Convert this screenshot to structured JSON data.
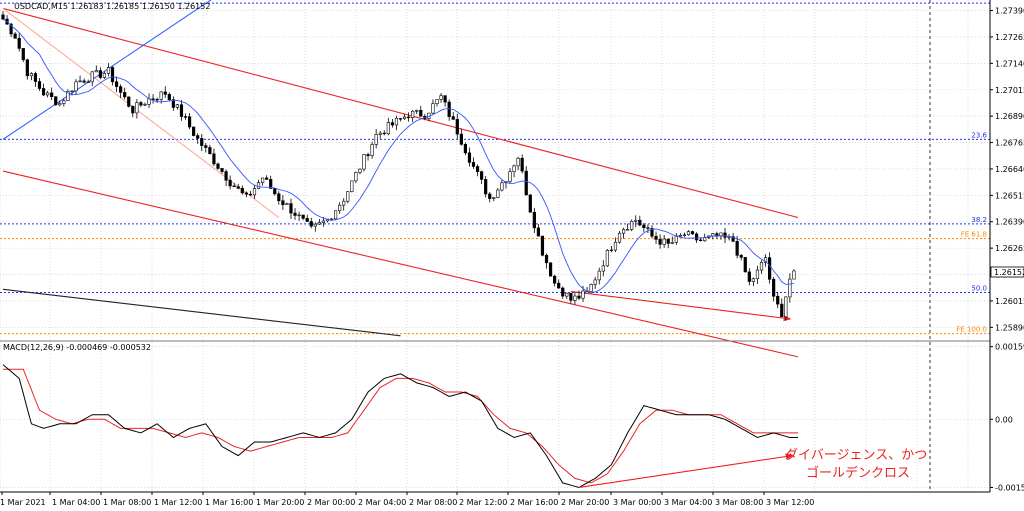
{
  "chart_data": {
    "type": "candlestick",
    "symbol_line": "USDCAD,M15  1.26183 1.26185 1.26150 1.26152",
    "last_price_tag": "1.26152",
    "price_axis": {
      "ylim": [
        1.2583,
        1.2744
      ],
      "ticks": [
        1.2739,
        1.27265,
        1.2714,
        1.27015,
        1.2689,
        1.26765,
        1.2664,
        1.26515,
        1.2639,
        1.26265,
        1.2614,
        1.26015,
        1.2589
      ],
      "tick_labels": [
        "1.27390",
        "1.27265",
        "1.27140",
        "1.27015",
        "1.26890",
        "1.26765",
        "1.26640",
        "1.26515",
        "1.26390",
        "1.26265",
        "1.26140",
        "1.26015",
        "1.25890"
      ]
    },
    "time_axis": {
      "labels": [
        "1 Mar 2021",
        "1 Mar 04:00",
        "1 Mar 08:00",
        "1 Mar 12:00",
        "1 Mar 16:00",
        "1 Mar 20:00",
        "2 Mar 00:00",
        "2 Mar 04:00",
        "2 Mar 08:00",
        "2 Mar 12:00",
        "2 Mar 16:00",
        "2 Mar 20:00",
        "3 Mar 00:00",
        "3 Mar 04:00",
        "3 Mar 08:00",
        "3 Mar 12:00"
      ],
      "bars": 196
    },
    "levels": [
      {
        "label": "23.6",
        "price": 1.2678,
        "color": "#2233ee",
        "style": "dotted"
      },
      {
        "label": "38.2",
        "price": 1.2638,
        "color": "#2233ee",
        "style": "dotted"
      },
      {
        "label": "FE 61.8",
        "price": 1.2631,
        "color": "#ff8800",
        "style": "dotted"
      },
      {
        "label": "50.0",
        "price": 1.26055,
        "color": "#2233ee",
        "style": "dotted"
      },
      {
        "label": "FE 100.0",
        "price": 1.2586,
        "color": "#ff8800",
        "style": "dotted"
      }
    ],
    "top_dotted_level": 1.27425,
    "price_anchors": [
      [
        0,
        1.2735
      ],
      [
        3,
        1.2727
      ],
      [
        6,
        1.271
      ],
      [
        10,
        1.27
      ],
      [
        14,
        1.2695
      ],
      [
        18,
        1.2705
      ],
      [
        22,
        1.2708
      ],
      [
        26,
        1.271
      ],
      [
        29,
        1.27
      ],
      [
        32,
        1.2692
      ],
      [
        36,
        1.2697
      ],
      [
        40,
        1.27
      ],
      [
        44,
        1.269
      ],
      [
        48,
        1.2678
      ],
      [
        52,
        1.2668
      ],
      [
        56,
        1.2658
      ],
      [
        60,
        1.265
      ],
      [
        64,
        1.266
      ],
      [
        68,
        1.265
      ],
      [
        72,
        1.2643
      ],
      [
        76,
        1.2635
      ],
      [
        80,
        1.264
      ],
      [
        84,
        1.265
      ],
      [
        88,
        1.2665
      ],
      [
        92,
        1.268
      ],
      [
        96,
        1.2685
      ],
      [
        100,
        1.269
      ],
      [
        104,
        1.269
      ],
      [
        108,
        1.2698
      ],
      [
        112,
        1.2682
      ],
      [
        116,
        1.2665
      ],
      [
        120,
        1.265
      ],
      [
        124,
        1.266
      ],
      [
        127,
        1.267
      ],
      [
        130,
        1.2645
      ],
      [
        133,
        1.2625
      ],
      [
        136,
        1.261
      ],
      [
        140,
        1.2602
      ],
      [
        144,
        1.2605
      ],
      [
        148,
        1.262
      ],
      [
        152,
        1.2635
      ],
      [
        156,
        1.264
      ],
      [
        160,
        1.2632
      ],
      [
        164,
        1.2628
      ],
      [
        168,
        1.2633
      ],
      [
        172,
        1.263
      ],
      [
        176,
        1.2632
      ],
      [
        180,
        1.263
      ],
      [
        184,
        1.261
      ],
      [
        186,
        1.2615
      ],
      [
        188,
        1.2622
      ],
      [
        190,
        1.2602
      ],
      [
        192,
        1.2596
      ],
      [
        194,
        1.2612
      ],
      [
        196,
        1.2615
      ]
    ],
    "ma_color": "#3355ff",
    "trend_lines": [
      {
        "color": "#ee2222",
        "from": [
          0,
          1.274
        ],
        "to": [
          196,
          1.2641
        ]
      },
      {
        "color": "#ee2222",
        "from": [
          0,
          1.2663
        ],
        "to": [
          196,
          1.2575
        ]
      },
      {
        "color": "#ee2222",
        "from": [
          140,
          1.2606
        ],
        "to": [
          194,
          1.2593
        ],
        "arrow": true
      },
      {
        "color": "#ffaa99",
        "from": [
          0,
          1.274
        ],
        "to": [
          68,
          1.2641
        ]
      },
      {
        "color": "#3366ff",
        "from": [
          0,
          1.2678
        ],
        "to": [
          52,
          1.2745
        ]
      },
      {
        "color": "#222222",
        "from": [
          0,
          1.2607
        ],
        "to": [
          98,
          1.2585
        ]
      }
    ],
    "macd": {
      "label": "MACD(12,26,9) -0.000469 -0.000532",
      "ylim": [
        -0.0016,
        0.0017
      ],
      "tick_labels": [
        "0.001597",
        "0.00",
        "-0.0015"
      ],
      "tick_values": [
        0.001597,
        0.0,
        -0.0015
      ],
      "macd_anchors": [
        [
          0,
          0.0012
        ],
        [
          4,
          0.0009
        ],
        [
          7,
          -0.0001
        ],
        [
          10,
          -0.0002
        ],
        [
          14,
          -0.0001
        ],
        [
          18,
          -0.0001
        ],
        [
          22,
          0.0001
        ],
        [
          26,
          0.0001
        ],
        [
          30,
          -0.0002
        ],
        [
          34,
          -0.0003
        ],
        [
          38,
          -0.0001
        ],
        [
          42,
          -0.0004
        ],
        [
          46,
          -0.0002
        ],
        [
          50,
          -0.0001
        ],
        [
          54,
          -0.0006
        ],
        [
          58,
          -0.0008
        ],
        [
          62,
          -0.0005
        ],
        [
          66,
          -0.0005
        ],
        [
          70,
          -0.0004
        ],
        [
          74,
          -0.0003
        ],
        [
          78,
          -0.0004
        ],
        [
          82,
          -0.0003
        ],
        [
          86,
          0.0
        ],
        [
          90,
          0.0006
        ],
        [
          94,
          0.0009
        ],
        [
          98,
          0.001
        ],
        [
          102,
          0.0008
        ],
        [
          106,
          0.0007
        ],
        [
          110,
          0.0005
        ],
        [
          114,
          0.0006
        ],
        [
          118,
          0.0004
        ],
        [
          122,
          -0.0002
        ],
        [
          126,
          -0.0004
        ],
        [
          130,
          -0.0003
        ],
        [
          134,
          -0.0008
        ],
        [
          138,
          -0.0014
        ],
        [
          142,
          -0.0015
        ],
        [
          146,
          -0.0013
        ],
        [
          150,
          -0.001
        ],
        [
          154,
          -0.0003
        ],
        [
          158,
          0.0003
        ],
        [
          162,
          0.0002
        ],
        [
          166,
          0.0001
        ],
        [
          170,
          0.0001
        ],
        [
          174,
          0.0001
        ],
        [
          178,
          0.0
        ],
        [
          182,
          -0.0002
        ],
        [
          186,
          -0.0004
        ],
        [
          190,
          -0.0003
        ],
        [
          194,
          -0.0004
        ],
        [
          196,
          -0.0004
        ]
      ],
      "signal_anchors": [
        [
          0,
          0.0011
        ],
        [
          5,
          0.0011
        ],
        [
          9,
          0.0002
        ],
        [
          13,
          0.0
        ],
        [
          17,
          -0.0001
        ],
        [
          21,
          0.0
        ],
        [
          25,
          0.0
        ],
        [
          29,
          -0.0002
        ],
        [
          33,
          -0.0002
        ],
        [
          37,
          -0.0002
        ],
        [
          41,
          -0.0003
        ],
        [
          45,
          -0.0004
        ],
        [
          49,
          -0.0003
        ],
        [
          53,
          -0.0004
        ],
        [
          57,
          -0.0006
        ],
        [
          61,
          -0.0007
        ],
        [
          65,
          -0.0006
        ],
        [
          69,
          -0.0005
        ],
        [
          73,
          -0.0004
        ],
        [
          77,
          -0.0004
        ],
        [
          81,
          -0.0004
        ],
        [
          85,
          -0.0003
        ],
        [
          89,
          0.0002
        ],
        [
          93,
          0.0007
        ],
        [
          97,
          0.0009
        ],
        [
          101,
          0.0009
        ],
        [
          105,
          0.0008
        ],
        [
          109,
          0.0006
        ],
        [
          113,
          0.0006
        ],
        [
          117,
          0.0005
        ],
        [
          121,
          0.0001
        ],
        [
          125,
          -0.0002
        ],
        [
          129,
          -0.0003
        ],
        [
          133,
          -0.0006
        ],
        [
          137,
          -0.001
        ],
        [
          141,
          -0.0013
        ],
        [
          145,
          -0.0014
        ],
        [
          149,
          -0.0012
        ],
        [
          153,
          -0.0007
        ],
        [
          157,
          -0.0001
        ],
        [
          161,
          0.0002
        ],
        [
          165,
          0.0002
        ],
        [
          169,
          0.0001
        ],
        [
          173,
          0.0001
        ],
        [
          177,
          0.0001
        ],
        [
          181,
          -0.0001
        ],
        [
          185,
          -0.0003
        ],
        [
          189,
          -0.0003
        ],
        [
          193,
          -0.0003
        ],
        [
          196,
          -0.0003
        ]
      ],
      "macd_color": "#000000",
      "signal_color": "#ee2222",
      "divergence_line": {
        "from": [
          142,
          -0.0015
        ],
        "to": [
          194,
          -0.0008
        ],
        "color": "#ee2222"
      },
      "annotation": [
        "ダイバージェンス、かつ",
        "ゴールデンクロス"
      ],
      "annotation_color": "#ee2222"
    },
    "grid": true
  }
}
